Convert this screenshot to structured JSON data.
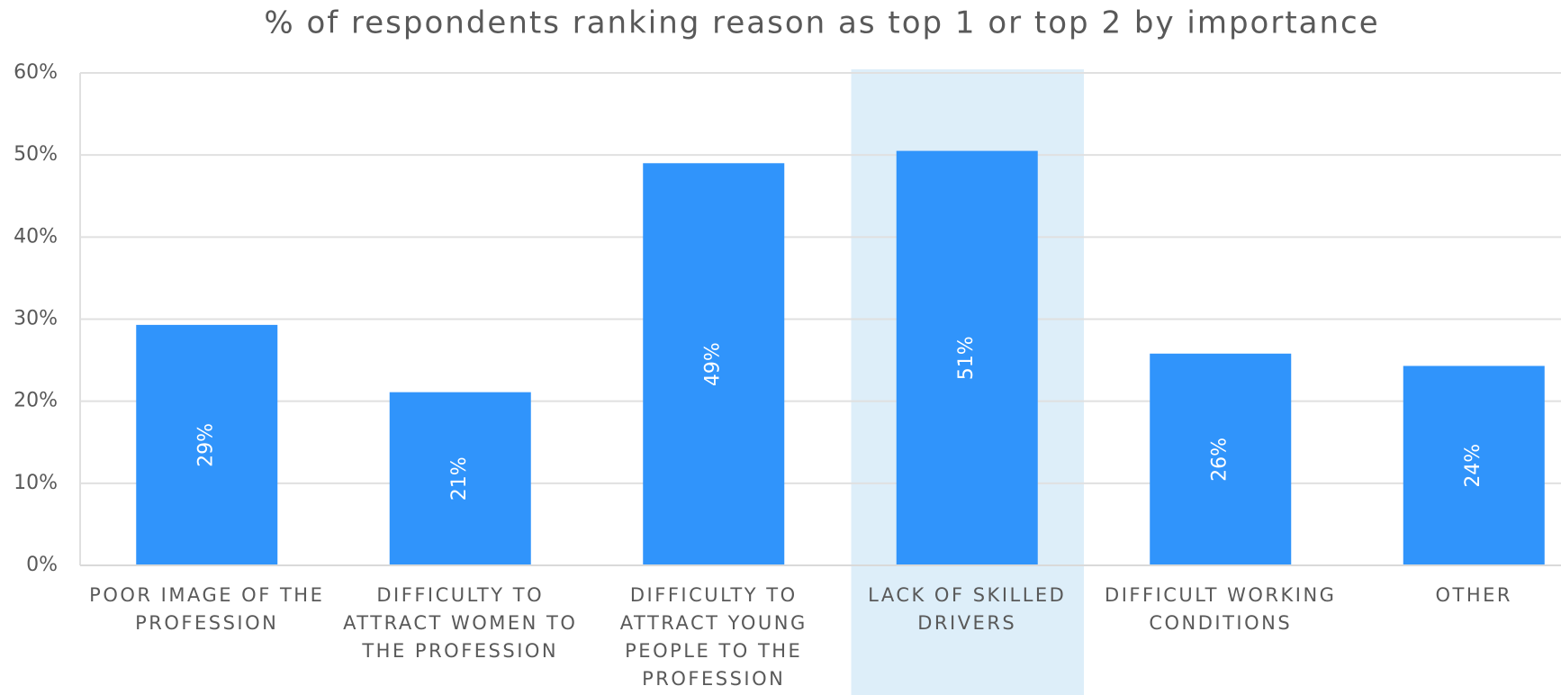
{
  "chart_data": {
    "type": "bar",
    "title": "% of respondents ranking reason as top 1 or top 2 by importance",
    "categories": [
      "POOR IMAGE OF THE PROFESSION",
      "DIFFICULTY TO ATTRACT WOMEN TO THE PROFESSION",
      "DIFFICULTY TO ATTRACT YOUNG PEOPLE TO THE PROFESSION",
      "LACK OF SKILLED DRIVERS",
      "DIFFICULT WORKING CONDITIONS",
      "OTHER"
    ],
    "values": [
      29.3,
      21.1,
      49,
      50.5,
      25.8,
      24.3
    ],
    "value_labels": [
      "29%",
      "21%",
      "49%",
      "51%",
      "26%",
      "24%"
    ],
    "color": "#3094fb",
    "highlight_index": 3,
    "highlight_color": "#ddeef9",
    "ylim": [
      0,
      60
    ],
    "yticks": [
      {
        "value": 0,
        "label": "0%"
      },
      {
        "value": 10,
        "label": "10%"
      },
      {
        "value": 20,
        "label": "20%"
      },
      {
        "value": 30,
        "label": "30%"
      },
      {
        "value": 40,
        "label": "40%"
      },
      {
        "value": 50,
        "label": "50%"
      },
      {
        "value": 60,
        "label": "60%"
      }
    ],
    "grid": true
  }
}
